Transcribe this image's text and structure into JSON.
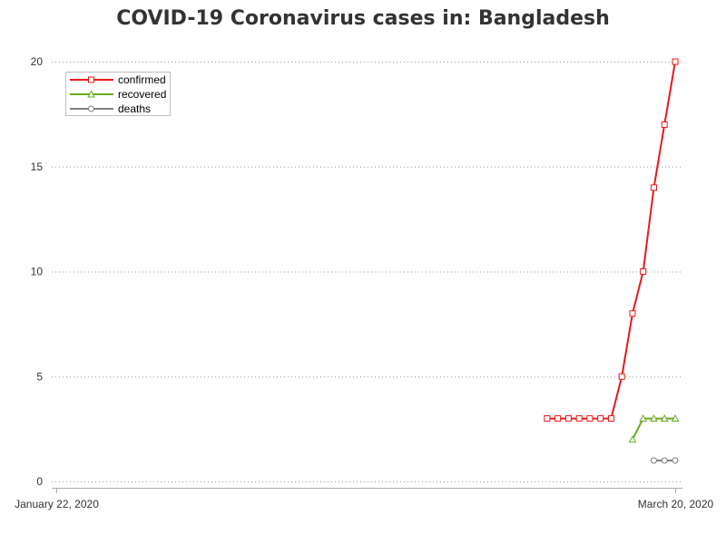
{
  "title": "COVID-19 Coronavirus cases in: Bangladesh",
  "chart_data": {
    "type": "line",
    "title": "COVID-19 Coronavirus cases in: Bangladesh",
    "xlabel": "",
    "ylabel": "",
    "x_range": [
      "2020-01-22",
      "2020-03-20"
    ],
    "x_tick_labels": [
      "January 22, 2020",
      "March 20, 2020"
    ],
    "ylim": [
      0,
      20
    ],
    "y_ticks": [
      0,
      5,
      10,
      15,
      20
    ],
    "grid": "horizontal dotted",
    "legend_position": "top-left",
    "series": [
      {
        "name": "confirmed",
        "color": "#e8191a",
        "marker": "square",
        "points": [
          [
            "2020-03-08",
            3
          ],
          [
            "2020-03-09",
            3
          ],
          [
            "2020-03-10",
            3
          ],
          [
            "2020-03-11",
            3
          ],
          [
            "2020-03-12",
            3
          ],
          [
            "2020-03-13",
            3
          ],
          [
            "2020-03-14",
            3
          ],
          [
            "2020-03-15",
            5
          ],
          [
            "2020-03-16",
            8
          ],
          [
            "2020-03-17",
            10
          ],
          [
            "2020-03-18",
            14
          ],
          [
            "2020-03-19",
            17
          ],
          [
            "2020-03-20",
            20
          ]
        ]
      },
      {
        "name": "recovered",
        "color": "#6aaa1e",
        "marker": "triangle",
        "points": [
          [
            "2020-03-16",
            2
          ],
          [
            "2020-03-17",
            3
          ],
          [
            "2020-03-18",
            3
          ],
          [
            "2020-03-19",
            3
          ],
          [
            "2020-03-20",
            3
          ]
        ]
      },
      {
        "name": "deaths",
        "color": "#7f7f7f",
        "marker": "circle",
        "points": [
          [
            "2020-03-18",
            1
          ],
          [
            "2020-03-19",
            1
          ],
          [
            "2020-03-20",
            1
          ]
        ]
      }
    ]
  }
}
